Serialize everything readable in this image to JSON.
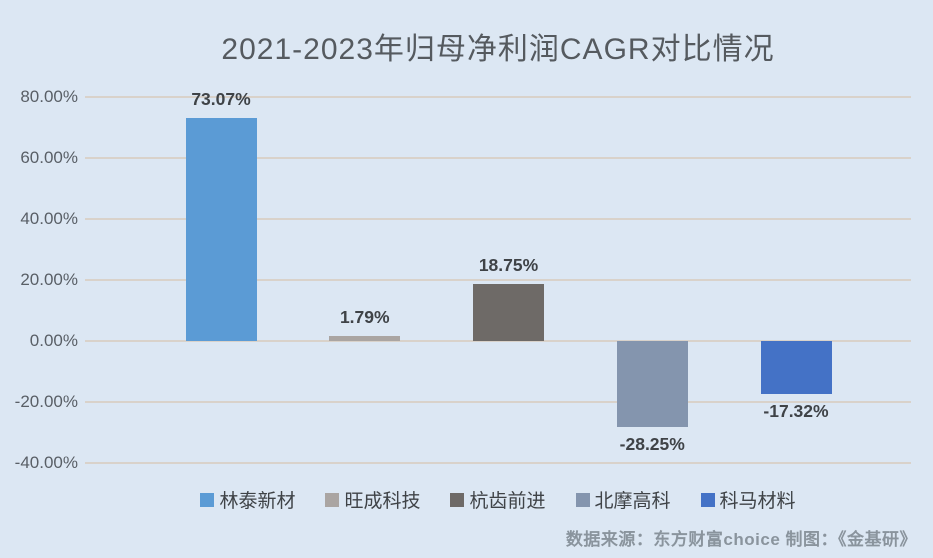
{
  "title": "2021-2023年归母净利润CAGR对比情况",
  "footer": {
    "source_text": "数据来源：东方财富choice  制图：《金基研》"
  },
  "colors": {
    "background": "#dce7f3",
    "gridline": "#d9d2ca",
    "title_text": "#555a5f",
    "axis_text": "#595f66",
    "value_label_text": "#3f4347",
    "source_text": "#8a949d"
  },
  "chart_data": {
    "type": "bar",
    "title": "2021-2023年归母净利润CAGR对比情况",
    "categories": [
      "林泰新材",
      "旺成科技",
      "杭齿前进",
      "北摩高科",
      "科马材料"
    ],
    "values": [
      73.07,
      1.79,
      18.75,
      -28.25,
      -17.32
    ],
    "value_labels": [
      "73.07%",
      "1.79%",
      "18.75%",
      "-28.25%",
      "-17.32%"
    ],
    "bar_colors": [
      "#5b9bd5",
      "#aaa5a2",
      "#6e6a67",
      "#8495ae",
      "#4472c6"
    ],
    "xlabel": "",
    "ylabel": "",
    "ylim": [
      -40,
      80
    ],
    "ytick_step": 20,
    "ytick_labels": [
      "80.00%",
      "60.00%",
      "40.00%",
      "20.00%",
      "0.00%",
      "-20.00%",
      "-40.00%"
    ],
    "grid": true,
    "legend_position": "bottom"
  }
}
